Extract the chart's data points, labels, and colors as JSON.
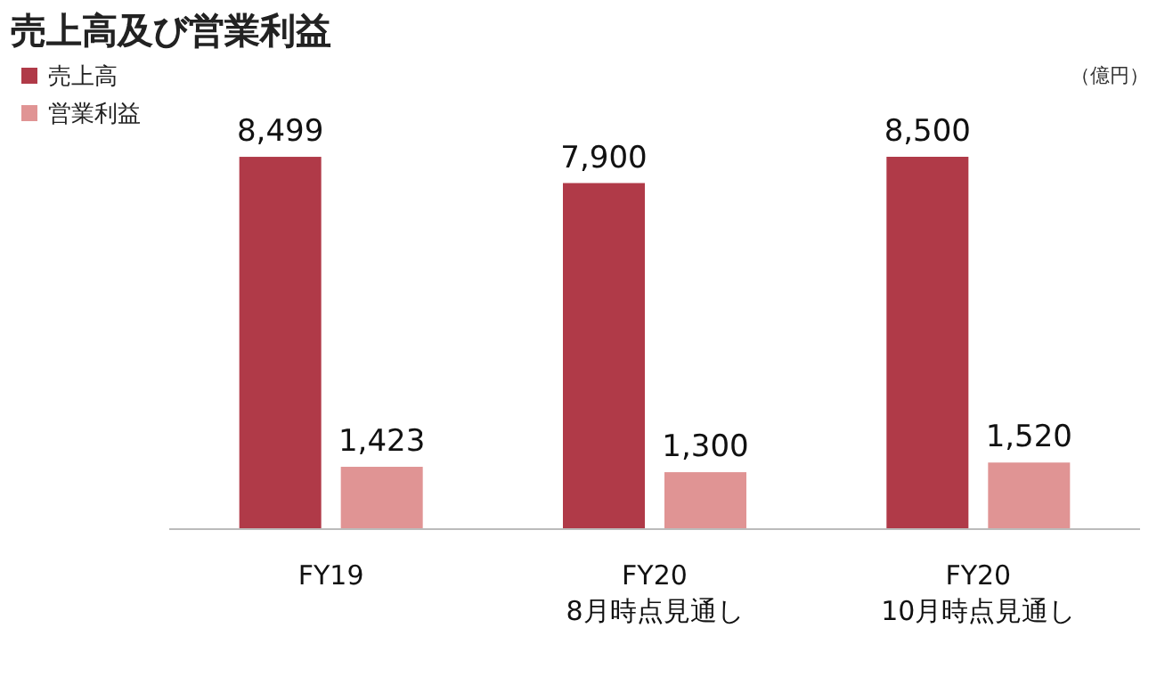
{
  "chart_data": {
    "type": "bar",
    "title": "売上高及び営業利益",
    "categories": [
      "FY19",
      "FY20\n8月時点見通し",
      "FY20\n10月時点見通し"
    ],
    "series": [
      {
        "name": "売上高",
        "color": "#b03a48",
        "values": [
          8499,
          7900,
          8500
        ],
        "value_labels": [
          "8,499",
          "7,900",
          "8,500"
        ]
      },
      {
        "name": "営業利益",
        "color": "#e09494",
        "values": [
          1423,
          1300,
          1520
        ],
        "value_labels": [
          "1,423",
          "1,300",
          "1,520"
        ]
      }
    ],
    "annotations": [
      "（億円）"
    ],
    "legend": "top left"
  }
}
